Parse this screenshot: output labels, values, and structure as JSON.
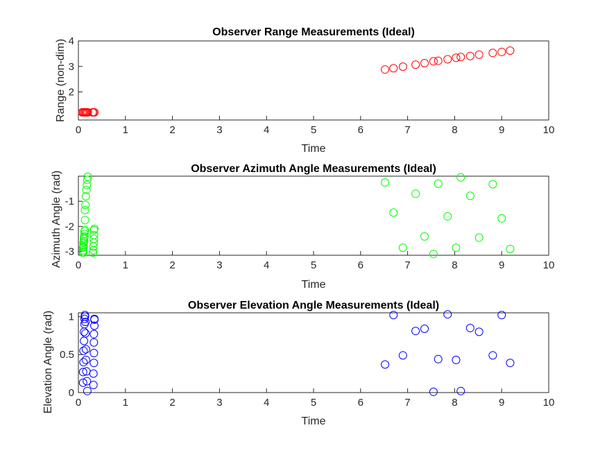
{
  "chart_data": [
    {
      "type": "scatter",
      "title": "Observer Range Measurements (Ideal)",
      "xlabel": "Time",
      "ylabel": "Range (non-dim)",
      "xlim": [
        0,
        10
      ],
      "ylim": [
        0.9,
        4
      ],
      "xticks": [
        0,
        1,
        2,
        3,
        4,
        5,
        6,
        7,
        8,
        9,
        10
      ],
      "yticks": [
        2,
        3,
        4
      ],
      "grid": false,
      "marker": "open-circle",
      "color": "#ff0000",
      "x": [
        0.08,
        0.1,
        0.12,
        0.14,
        0.16,
        0.18,
        0.2,
        0.3,
        0.32,
        0.34,
        6.52,
        6.7,
        6.9,
        7.17,
        7.36,
        7.55,
        7.65,
        7.85,
        8.03,
        8.13,
        8.33,
        8.52,
        8.81,
        9.0,
        9.18
      ],
      "y": [
        1.2,
        1.2,
        1.2,
        1.2,
        1.2,
        1.2,
        1.2,
        1.2,
        1.2,
        1.2,
        2.88,
        2.93,
        2.99,
        3.07,
        3.13,
        3.2,
        3.22,
        3.28,
        3.34,
        3.37,
        3.41,
        3.46,
        3.53,
        3.57,
        3.62
      ]
    },
    {
      "type": "scatter",
      "title": "Observer Azimuth Angle Measurements (Ideal)",
      "xlabel": "Time",
      "ylabel": "Azimuth Angle (rad)",
      "xlim": [
        0,
        10
      ],
      "ylim": [
        -3.15,
        0
      ],
      "xticks": [
        0,
        1,
        2,
        3,
        4,
        5,
        6,
        7,
        8,
        9,
        10
      ],
      "yticks": [
        -3,
        -2,
        -1
      ],
      "grid": false,
      "marker": "open-circle",
      "color": "#00ff00",
      "x": [
        0.1,
        0.11,
        0.12,
        0.13,
        0.14,
        0.14,
        0.15,
        0.16,
        0.17,
        0.18,
        0.19,
        0.2,
        0.14,
        0.13,
        0.12,
        0.11,
        0.1,
        0.1,
        0.1,
        0.11,
        0.12,
        0.13,
        0.31,
        0.32,
        0.32,
        0.33,
        0.33,
        0.33,
        0.33,
        0.34,
        6.52,
        6.7,
        6.9,
        7.17,
        7.36,
        7.55,
        7.65,
        7.85,
        8.03,
        8.13,
        8.33,
        8.52,
        8.81,
        9.0,
        9.18
      ],
      "y": [
        -3.0,
        -2.82,
        -2.6,
        -2.4,
        -2.15,
        -1.75,
        -1.15,
        -0.8,
        -0.55,
        -0.35,
        -0.15,
        -0.02,
        -1.35,
        -2.2,
        -2.45,
        -2.65,
        -2.85,
        -2.95,
        -3.05,
        -2.75,
        -2.5,
        -2.3,
        -3.05,
        -2.95,
        -2.8,
        -2.65,
        -2.5,
        -2.35,
        -2.15,
        -2.1,
        -0.25,
        -1.45,
        -2.85,
        -0.7,
        -2.4,
        -3.1,
        -0.3,
        -1.6,
        -2.85,
        -0.05,
        -0.78,
        -2.45,
        -0.32,
        -1.68,
        -2.9
      ]
    },
    {
      "type": "scatter",
      "title": "Observer Elevation Angle Measurements (Ideal)",
      "xlabel": "Time",
      "ylabel": "Elevation Angle (rad)",
      "xlim": [
        0,
        10
      ],
      "ylim": [
        0,
        1.05
      ],
      "xticks": [
        0,
        1,
        2,
        3,
        4,
        5,
        6,
        7,
        8,
        9,
        10
      ],
      "yticks": [
        0,
        0.5,
        1
      ],
      "grid": false,
      "marker": "open-circle",
      "color": "#0000ff",
      "x": [
        0.1,
        0.1,
        0.11,
        0.11,
        0.12,
        0.12,
        0.13,
        0.13,
        0.14,
        0.14,
        0.15,
        0.15,
        0.16,
        0.16,
        0.17,
        0.18,
        0.19,
        0.32,
        0.32,
        0.33,
        0.33,
        0.33,
        0.33,
        0.34,
        0.34,
        0.34,
        6.52,
        6.7,
        6.9,
        7.17,
        7.36,
        7.55,
        7.65,
        7.85,
        8.03,
        8.13,
        8.33,
        8.52,
        8.81,
        9.0,
        9.18
      ],
      "y": [
        0.13,
        0.27,
        0.4,
        0.55,
        0.68,
        0.8,
        0.9,
        0.97,
        1.02,
        1.0,
        0.93,
        0.78,
        0.57,
        0.43,
        0.28,
        0.15,
        0.02,
        0.1,
        0.25,
        0.39,
        0.52,
        0.66,
        0.77,
        0.88,
        0.97,
        0.96,
        0.37,
        1.02,
        0.49,
        0.81,
        0.84,
        0.01,
        0.44,
        1.03,
        0.43,
        0.02,
        0.85,
        0.8,
        0.49,
        1.02,
        0.39
      ]
    }
  ]
}
